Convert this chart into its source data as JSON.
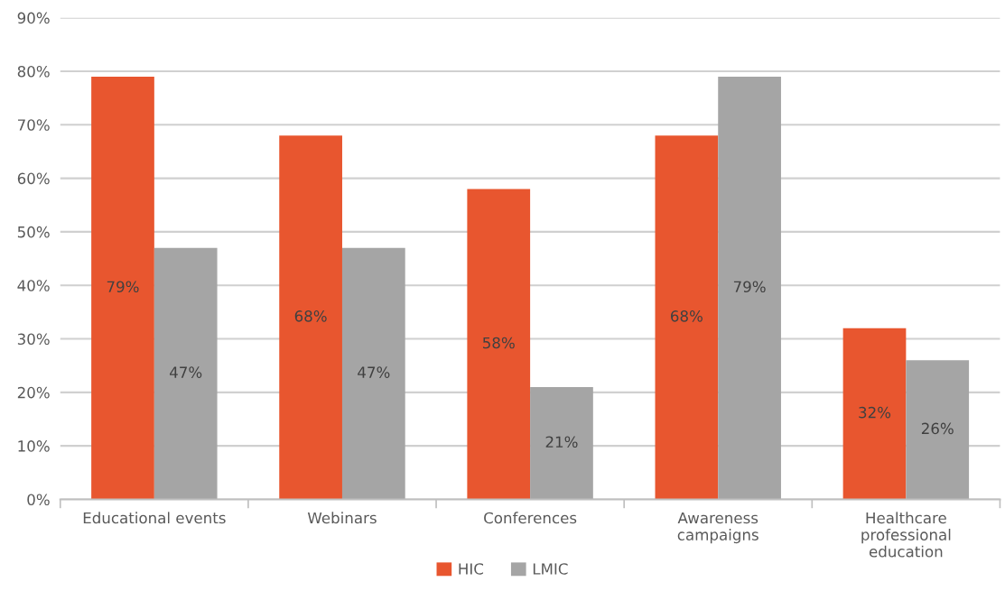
{
  "chart_data": {
    "type": "bar",
    "categories": [
      "Educational events",
      "Webinars",
      "Conferences",
      "Awareness\ncampaigns",
      "Healthcare\nprofessional\neducation"
    ],
    "series": [
      {
        "name": "HIC",
        "color": "#e8562f",
        "values": [
          79,
          68,
          58,
          68,
          32
        ],
        "value_labels": [
          "79%",
          "68%",
          "58%",
          "68%",
          "32%"
        ]
      },
      {
        "name": "LMIC",
        "color": "#a5a5a5",
        "values": [
          47,
          47,
          21,
          79,
          26
        ],
        "value_labels": [
          "47%",
          "47%",
          "21%",
          "79%",
          "26%"
        ]
      }
    ],
    "ylim": [
      0,
      90
    ],
    "yticks": [
      {
        "value": 0,
        "label": "0%"
      },
      {
        "value": 10,
        "label": "10%"
      },
      {
        "value": 20,
        "label": "20%"
      },
      {
        "value": 30,
        "label": "30%"
      },
      {
        "value": 40,
        "label": "40%"
      },
      {
        "value": 50,
        "label": "50%"
      },
      {
        "value": 60,
        "label": "60%"
      },
      {
        "value": 70,
        "label": "70%"
      },
      {
        "value": 80,
        "label": "80%"
      },
      {
        "value": 90,
        "label": "90%"
      }
    ],
    "grid": "y",
    "legend": "bottom"
  }
}
